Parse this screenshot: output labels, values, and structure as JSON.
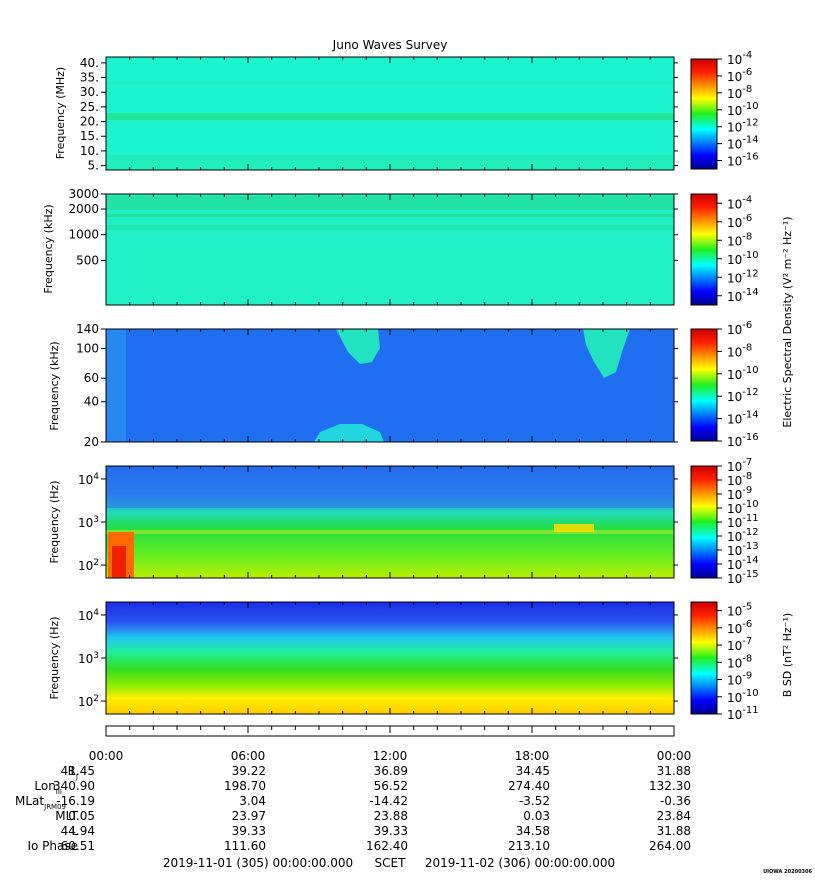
{
  "title": "Juno Waves Survey",
  "watermark": "UIOWA 20200306",
  "panels": [
    {
      "id": "mhz",
      "ylabel": "Frequency (MHz)",
      "yscale": "linear",
      "yrange": [
        3.5,
        42
      ],
      "yticks": [
        {
          "v": 40,
          "label": "40."
        },
        {
          "v": 35,
          "label": "35."
        },
        {
          "v": 30,
          "label": "30."
        },
        {
          "v": 25,
          "label": "25."
        },
        {
          "v": 20,
          "label": "20."
        },
        {
          "v": 15,
          "label": "15."
        },
        {
          "v": 10,
          "label": "10."
        },
        {
          "v": 5,
          "label": "5."
        }
      ],
      "colorbar": {
        "scale": "log",
        "range": [
          -17,
          -4
        ],
        "ticks": [
          {
            "exp": "-4"
          },
          {
            "exp": "-6"
          },
          {
            "exp": "-8"
          },
          {
            "exp": "-10"
          },
          {
            "exp": "-12"
          },
          {
            "exp": "-14"
          },
          {
            "exp": "-16"
          }
        ],
        "label": ""
      },
      "background": "#18f6d6"
    },
    {
      "id": "khz_high",
      "ylabel": "Frequency (kHz)",
      "yscale": "log",
      "yrange": [
        150,
        3000
      ],
      "yticks": [
        {
          "v": 3000,
          "label": "3000"
        },
        {
          "v": 2000,
          "label": "2000"
        },
        {
          "v": 1000,
          "label": "1000"
        },
        {
          "v": 500,
          "label": "500"
        }
      ],
      "colorbar": {
        "scale": "log",
        "range": [
          -15,
          -3
        ],
        "ticks": [
          {
            "exp": "-4"
          },
          {
            "exp": "-6"
          },
          {
            "exp": "-8"
          },
          {
            "exp": "-10"
          },
          {
            "exp": "-12"
          },
          {
            "exp": "-14"
          }
        ],
        "label": ""
      },
      "background": "#1ef2c4"
    },
    {
      "id": "khz_low",
      "ylabel": "Frequency (kHz)",
      "yscale": "log",
      "yrange": [
        20,
        140
      ],
      "yticks": [
        {
          "v": 140,
          "label": "140"
        },
        {
          "v": 100,
          "label": "100"
        },
        {
          "v": 60,
          "label": "60"
        },
        {
          "v": 40,
          "label": "40"
        },
        {
          "v": 20,
          "label": "20"
        }
      ],
      "colorbar": {
        "scale": "log",
        "range": [
          -16,
          -6
        ],
        "ticks": [
          {
            "exp": "-6"
          },
          {
            "exp": "-8"
          },
          {
            "exp": "-10"
          },
          {
            "exp": "-12"
          },
          {
            "exp": "-14"
          },
          {
            "exp": "-16"
          }
        ],
        "label": "Electric Spectral Density (V² m⁻² Hz⁻¹)"
      },
      "background": "#1a6ef0"
    },
    {
      "id": "hz_e",
      "ylabel": "Frequency (Hz)",
      "yscale": "log",
      "yrange": [
        50,
        20000
      ],
      "yticks": [
        {
          "v": 10000,
          "exp": "4"
        },
        {
          "v": 1000,
          "exp": "3"
        },
        {
          "v": 100,
          "exp": "2"
        }
      ],
      "colorbar": {
        "scale": "log",
        "range": [
          -15,
          -7
        ],
        "ticks": [
          {
            "exp": "-7"
          },
          {
            "exp": "-8"
          },
          {
            "exp": "-9"
          },
          {
            "exp": "-10"
          },
          {
            "exp": "-11"
          },
          {
            "exp": "-12"
          },
          {
            "exp": "-13"
          },
          {
            "exp": "-14"
          },
          {
            "exp": "-15"
          }
        ],
        "label": ""
      },
      "background": "#22cc55"
    },
    {
      "id": "hz_b",
      "ylabel": "Frequency (Hz)",
      "yscale": "log",
      "yrange": [
        50,
        20000
      ],
      "yticks": [
        {
          "v": 10000,
          "exp": "4"
        },
        {
          "v": 1000,
          "exp": "3"
        },
        {
          "v": 100,
          "exp": "2"
        }
      ],
      "colorbar": {
        "scale": "log",
        "range": [
          -11,
          -4.5
        ],
        "ticks": [
          {
            "exp": "-5"
          },
          {
            "exp": "-6"
          },
          {
            "exp": "-7"
          },
          {
            "exp": "-8"
          },
          {
            "exp": "-9"
          },
          {
            "exp": "-10"
          },
          {
            "exp": "-11"
          }
        ],
        "label": "B SD (nT² Hz⁻¹)"
      },
      "background": "#33dd44"
    }
  ],
  "time_axis": {
    "ticks": [
      "00:00",
      "06:00",
      "12:00",
      "18:00",
      "00:00"
    ],
    "rows": [
      {
        "label": "R",
        "sub": "J",
        "values": [
          "41.45",
          "39.22",
          "36.89",
          "34.45",
          "31.88"
        ]
      },
      {
        "label": "Lon",
        "sub": "III",
        "values": [
          "340.90",
          "198.70",
          "56.52",
          "274.40",
          "132.30"
        ]
      },
      {
        "label": "MLat",
        "sub": "JRM09",
        "values": [
          "-16.19",
          "3.04",
          "-14.42",
          "-3.52",
          "-0.36"
        ]
      },
      {
        "label": "MLT",
        "sub": "",
        "values": [
          "0.05",
          "23.97",
          "23.88",
          "0.03",
          "23.84"
        ]
      },
      {
        "label": "L",
        "sub": "",
        "values": [
          "44.94",
          "39.33",
          "39.33",
          "34.58",
          "31.88"
        ]
      },
      {
        "label": "Io Phase",
        "sub": "",
        "values": [
          "60.51",
          "111.60",
          "162.40",
          "213.10",
          "264.00"
        ]
      }
    ],
    "footer_start": "2019-11-01 (305) 00:00:00.000",
    "footer_mid": "SCET",
    "footer_end": "2019-11-02 (306) 00:00:00.000"
  },
  "chart_data": {
    "type": "heatmap",
    "title": "Juno Waves Survey",
    "x_range": [
      "2019-11-01 00:00",
      "2019-11-02 00:00"
    ],
    "x_ticks": [
      "00:00",
      "06:00",
      "12:00",
      "18:00",
      "00:00"
    ],
    "panels": [
      {
        "ylabel": "Frequency (MHz)",
        "yrange": [
          3.5,
          42
        ],
        "colorbar_range_exp": [
          -17,
          -4
        ]
      },
      {
        "ylabel": "Frequency (kHz)",
        "yrange": [
          150,
          3000
        ],
        "colorbar_range_exp": [
          -15,
          -3
        ]
      },
      {
        "ylabel": "Frequency (kHz)",
        "yrange": [
          20,
          140
        ],
        "colorbar_range_exp": [
          -16,
          -6
        ]
      },
      {
        "ylabel": "Frequency (Hz)",
        "yrange": [
          50,
          20000
        ],
        "colorbar_range_exp": [
          -15,
          -7
        ]
      },
      {
        "ylabel": "Frequency (Hz)",
        "yrange": [
          50,
          20000
        ],
        "colorbar_range_exp": [
          -11,
          -4.5
        ]
      }
    ]
  }
}
